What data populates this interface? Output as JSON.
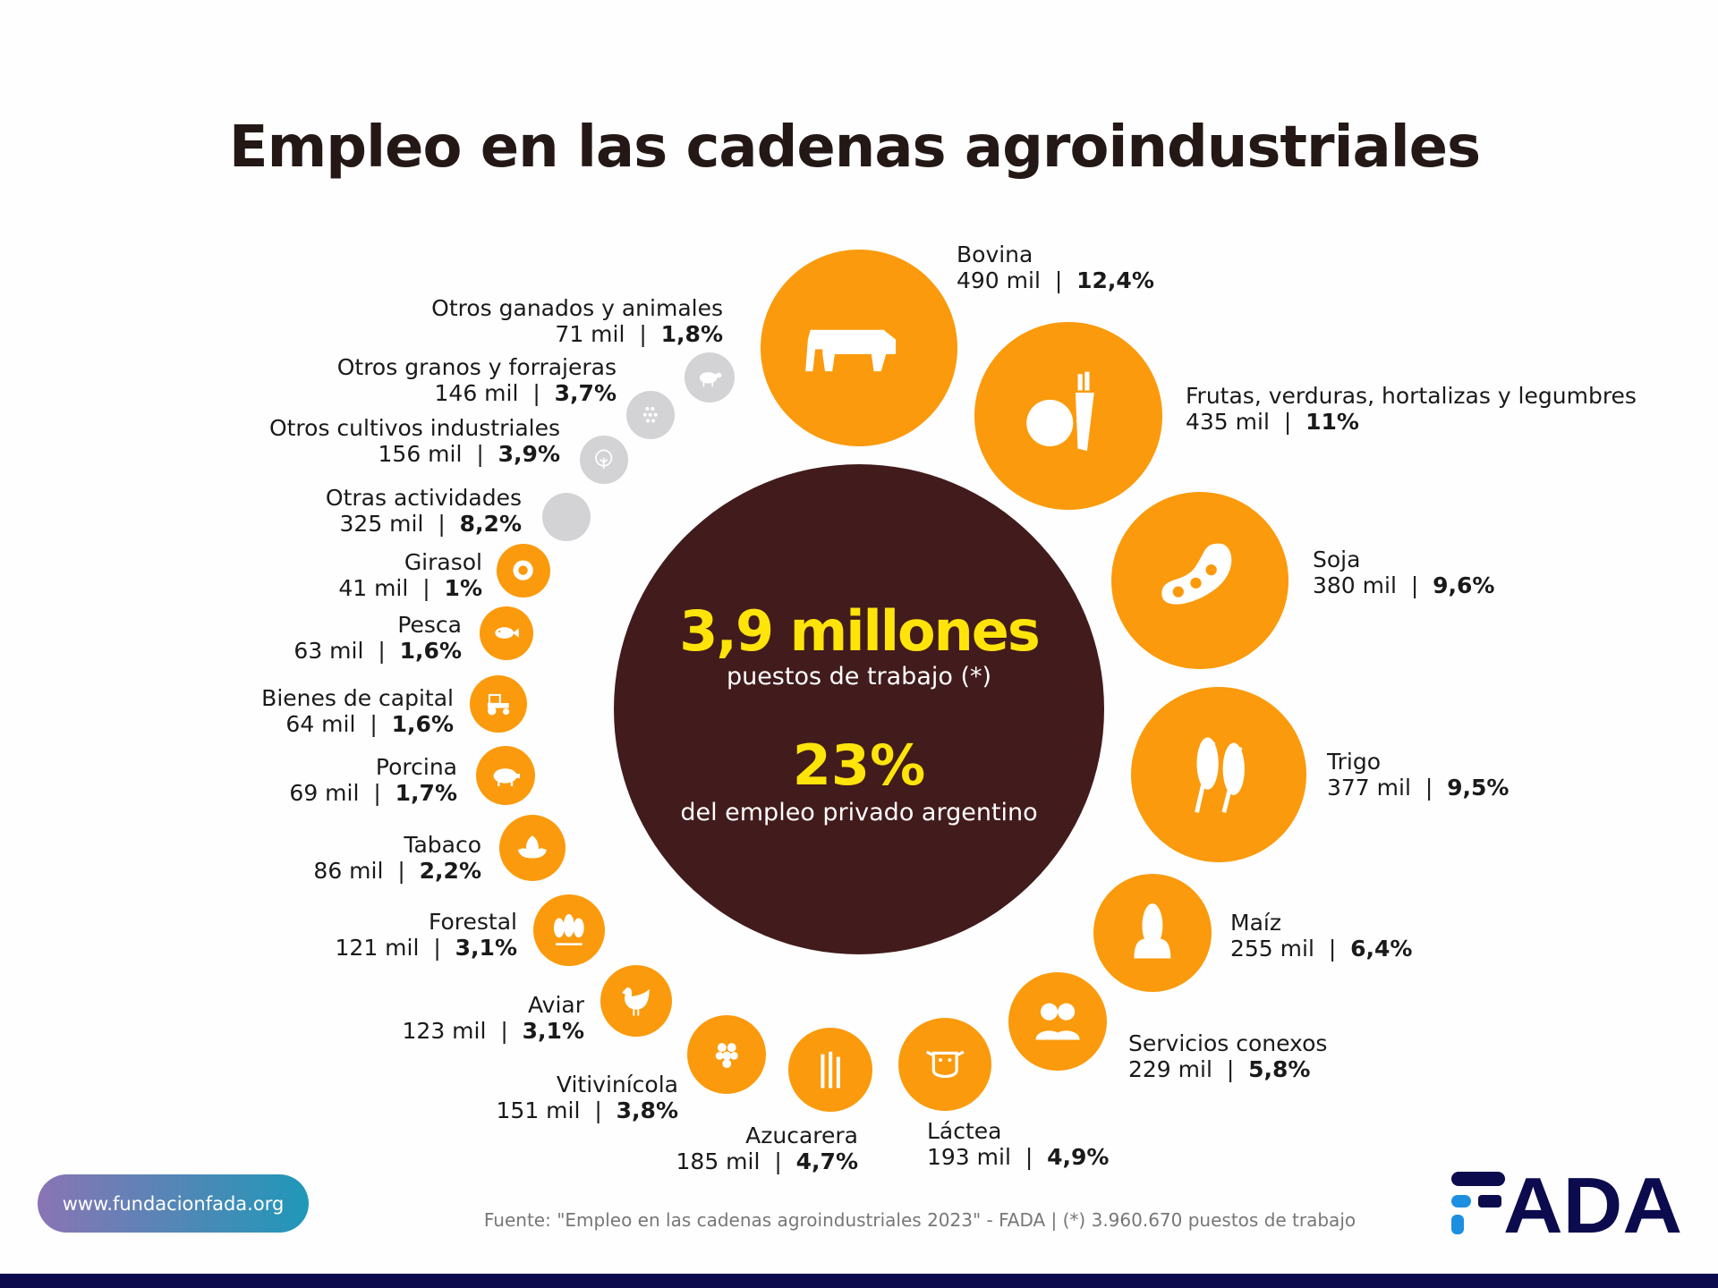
{
  "title": "Empleo en las cadenas agroindustriales",
  "center": {
    "total": "3,9 millones",
    "total_sub": "puestos de trabajo (*)",
    "share": "23%",
    "share_sub": "del empleo privado argentino"
  },
  "colors": {
    "orange": "#fb9a0c",
    "gray": "#d3d3d5",
    "center": "#421b1c",
    "highlight": "#ffe40a",
    "navy": "#0b0b4e",
    "logo_blue": "#1e8fe0"
  },
  "chart_data": {
    "type": "bubble",
    "unit": "mil",
    "items": [
      {
        "name": "Bovina",
        "value": "490 mil",
        "pct": "12,4%",
        "jobs_thousands": 490,
        "share": 12.4,
        "color": "orange",
        "icon": "cow-icon"
      },
      {
        "name": "Frutas, verduras, hortalizas y legumbres",
        "value": "435 mil",
        "pct": "11%",
        "jobs_thousands": 435,
        "share": 11,
        "color": "orange",
        "icon": "apple-carrot-icon"
      },
      {
        "name": "Soja",
        "value": "380 mil",
        "pct": "9,6%",
        "jobs_thousands": 380,
        "share": 9.6,
        "color": "orange",
        "icon": "soybean-icon"
      },
      {
        "name": "Trigo",
        "value": "377 mil",
        "pct": "9,5%",
        "jobs_thousands": 377,
        "share": 9.5,
        "color": "orange",
        "icon": "wheat-icon"
      },
      {
        "name": "Maíz",
        "value": "255 mil",
        "pct": "6,4%",
        "jobs_thousands": 255,
        "share": 6.4,
        "color": "orange",
        "icon": "corn-icon"
      },
      {
        "name": "Servicios conexos",
        "value": "229 mil",
        "pct": "5,8%",
        "jobs_thousands": 229,
        "share": 5.8,
        "color": "orange",
        "icon": "people-icon"
      },
      {
        "name": "Láctea",
        "value": "193 mil",
        "pct": "4,9%",
        "jobs_thousands": 193,
        "share": 4.9,
        "color": "orange",
        "icon": "dairy-cow-icon"
      },
      {
        "name": "Azucarera",
        "value": "185 mil",
        "pct": "4,7%",
        "jobs_thousands": 185,
        "share": 4.7,
        "color": "orange",
        "icon": "sugarcane-icon"
      },
      {
        "name": "Vitivinícola",
        "value": "151 mil",
        "pct": "3,8%",
        "jobs_thousands": 151,
        "share": 3.8,
        "color": "orange",
        "icon": "grapes-icon"
      },
      {
        "name": "Aviar",
        "value": "123 mil",
        "pct": "3,1%",
        "jobs_thousands": 123,
        "share": 3.1,
        "color": "orange",
        "icon": "chicken-icon"
      },
      {
        "name": "Forestal",
        "value": "121 mil",
        "pct": "3,1%",
        "jobs_thousands": 121,
        "share": 3.1,
        "color": "orange",
        "icon": "trees-icon"
      },
      {
        "name": "Tabaco",
        "value": "86 mil",
        "pct": "2,2%",
        "jobs_thousands": 86,
        "share": 2.2,
        "color": "orange",
        "icon": "tobacco-leaf-icon"
      },
      {
        "name": "Porcina",
        "value": "69 mil",
        "pct": "1,7%",
        "jobs_thousands": 69,
        "share": 1.7,
        "color": "orange",
        "icon": "pig-icon"
      },
      {
        "name": "Bienes de capital",
        "value": "64 mil",
        "pct": "1,6%",
        "jobs_thousands": 64,
        "share": 1.6,
        "color": "orange",
        "icon": "tractor-icon"
      },
      {
        "name": "Pesca",
        "value": "63 mil",
        "pct": "1,6%",
        "jobs_thousands": 63,
        "share": 1.6,
        "color": "orange",
        "icon": "fish-icon"
      },
      {
        "name": "Girasol",
        "value": "41 mil",
        "pct": "1%",
        "jobs_thousands": 41,
        "share": 1,
        "color": "orange",
        "icon": "sunflower-icon"
      },
      {
        "name": "Otras actividades",
        "value": "325 mil",
        "pct": "8,2%",
        "jobs_thousands": 325,
        "share": 8.2,
        "color": "gray",
        "icon": ""
      },
      {
        "name": "Otros cultivos industriales",
        "value": "156 mil",
        "pct": "3,9%",
        "jobs_thousands": 156,
        "share": 3.9,
        "color": "gray",
        "icon": "cotton-icon"
      },
      {
        "name": "Otros granos y forrajeras",
        "value": "146 mil",
        "pct": "3,7%",
        "jobs_thousands": 146,
        "share": 3.7,
        "color": "gray",
        "icon": "grains-icon"
      },
      {
        "name": "Otros ganados y animales",
        "value": "71 mil",
        "pct": "1,8%",
        "jobs_thousands": 71,
        "share": 1.8,
        "color": "gray",
        "icon": "sheep-icon"
      }
    ]
  },
  "footer": {
    "website": "www.fundacionfada.org",
    "source": "Fuente: \"Empleo en las cadenas agroindustriales 2023\" - FADA | (*) 3.960.670 puestos de trabajo",
    "logo_text": "FADA"
  }
}
